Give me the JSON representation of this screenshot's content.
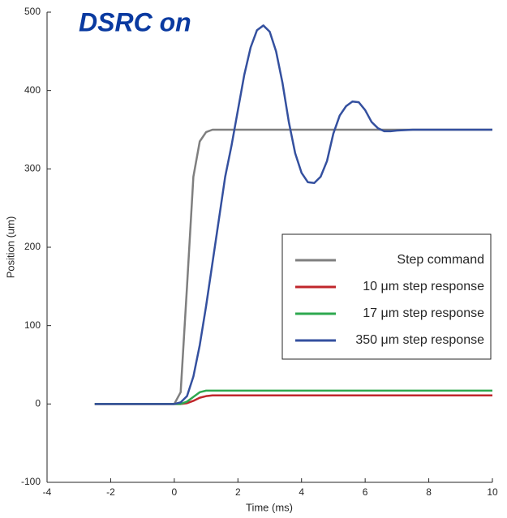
{
  "chart_data": {
    "type": "line",
    "annotation": "DSRC on",
    "xlabel": "Time (ms)",
    "ylabel": "Position (um)",
    "xlim": [
      -4,
      10
    ],
    "xticks": [
      -4,
      -2,
      0,
      2,
      4,
      6,
      8,
      10
    ],
    "ylim": [
      -100,
      500
    ],
    "yticks": [
      -100,
      0,
      100,
      200,
      300,
      400,
      500
    ],
    "grid": false,
    "legend": "lower right",
    "x": [
      -2.5,
      0,
      0.2,
      0.4,
      0.6,
      0.8,
      1.0,
      1.2,
      1.4,
      1.6,
      1.8,
      2.0,
      2.2,
      2.4,
      2.6,
      2.8,
      3.0,
      3.2,
      3.4,
      3.6,
      3.8,
      4.0,
      4.2,
      4.4,
      4.6,
      4.8,
      5.0,
      5.2,
      5.4,
      5.6,
      5.8,
      6.0,
      6.2,
      6.4,
      6.6,
      6.8,
      7.0,
      7.5,
      8,
      9,
      10
    ],
    "series": [
      {
        "name": "Step command",
        "color": "#7f7f7f",
        "values": [
          0,
          0,
          15,
          150,
          290,
          335,
          347,
          350,
          350,
          350,
          350,
          350,
          350,
          350,
          350,
          350,
          350,
          350,
          350,
          350,
          350,
          350,
          350,
          350,
          350,
          350,
          350,
          350,
          350,
          350,
          350,
          350,
          350,
          350,
          350,
          350,
          350,
          350,
          350,
          350,
          350
        ]
      },
      {
        "name": "10 μm step response",
        "color": "#c0262b",
        "values": [
          0,
          0,
          0,
          1,
          4,
          8,
          10,
          11,
          11,
          11,
          11,
          11,
          11,
          11,
          11,
          11,
          11,
          11,
          11,
          11,
          11,
          11,
          11,
          11,
          11,
          11,
          11,
          11,
          11,
          11,
          11,
          11,
          11,
          11,
          11,
          11,
          11,
          11,
          11,
          11,
          11
        ]
      },
      {
        "name": "17 μm step response",
        "color": "#2ea84f",
        "values": [
          0,
          0,
          0,
          3,
          9,
          15,
          17,
          17,
          17,
          17,
          17,
          17,
          17,
          17,
          17,
          17,
          17,
          17,
          17,
          17,
          17,
          17,
          17,
          17,
          17,
          17,
          17,
          17,
          17,
          17,
          17,
          17,
          17,
          17,
          17,
          17,
          17,
          17,
          17,
          17,
          17
        ]
      },
      {
        "name": "350 μm step response",
        "color": "#34509f",
        "values": [
          0,
          0,
          2,
          10,
          35,
          75,
          125,
          180,
          235,
          290,
          330,
          375,
          420,
          455,
          477,
          483,
          475,
          450,
          410,
          360,
          320,
          295,
          283,
          282,
          290,
          310,
          345,
          368,
          380,
          386,
          385,
          375,
          360,
          352,
          348,
          348,
          349,
          350,
          350,
          350,
          350
        ]
      }
    ]
  }
}
